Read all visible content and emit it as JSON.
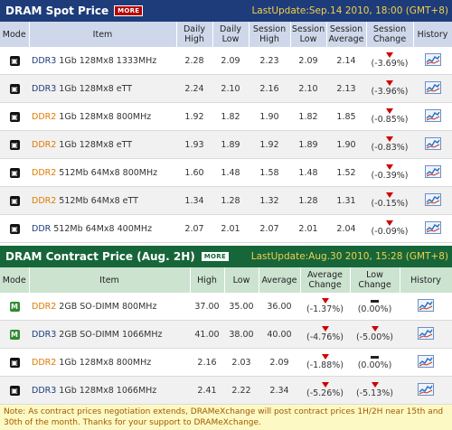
{
  "spot": {
    "title": "DRAM Spot Price",
    "more": "MORE",
    "last_update": "LastUpdate:Sep.14 2010, 18:00 (GMT+8)",
    "headers": [
      "Mode",
      "Item",
      "Daily High",
      "Daily Low",
      "Session High",
      "Session Low",
      "Session Average",
      "Session Change",
      "History"
    ],
    "rows": [
      {
        "mode": "E",
        "gen": "DDR3",
        "item": " 1Gb 128Mx8 1333MHz",
        "daily_high": "2.28",
        "daily_low": "2.09",
        "session_high": "2.23",
        "session_low": "2.09",
        "session_avg": "2.14",
        "change": "(-3.69%)",
        "dir": "down"
      },
      {
        "mode": "E",
        "gen": "DDR3",
        "item": " 1Gb 128Mx8 eTT",
        "daily_high": "2.24",
        "daily_low": "2.10",
        "session_high": "2.16",
        "session_low": "2.10",
        "session_avg": "2.13",
        "change": "(-3.96%)",
        "dir": "down"
      },
      {
        "mode": "E",
        "gen": "DDR2",
        "item": " 1Gb 128Mx8 800MHz",
        "daily_high": "1.92",
        "daily_low": "1.82",
        "session_high": "1.90",
        "session_low": "1.82",
        "session_avg": "1.85",
        "change": "(-0.85%)",
        "dir": "down"
      },
      {
        "mode": "E",
        "gen": "DDR2",
        "item": " 1Gb 128Mx8 eTT",
        "daily_high": "1.93",
        "daily_low": "1.89",
        "session_high": "1.92",
        "session_low": "1.89",
        "session_avg": "1.90",
        "change": "(-0.83%)",
        "dir": "down"
      },
      {
        "mode": "E",
        "gen": "DDR2",
        "item": " 512Mb 64Mx8 800MHz",
        "daily_high": "1.60",
        "daily_low": "1.48",
        "session_high": "1.58",
        "session_low": "1.48",
        "session_avg": "1.52",
        "change": "(-0.39%)",
        "dir": "down"
      },
      {
        "mode": "E",
        "gen": "DDR2",
        "item": " 512Mb 64Mx8 eTT",
        "daily_high": "1.34",
        "daily_low": "1.28",
        "session_high": "1.32",
        "session_low": "1.28",
        "session_avg": "1.31",
        "change": "(-0.15%)",
        "dir": "down"
      },
      {
        "mode": "E",
        "gen": "DDR",
        "item": " 512Mb 64Mx8 400MHz",
        "daily_high": "2.07",
        "daily_low": "2.01",
        "session_high": "2.07",
        "session_low": "2.01",
        "session_avg": "2.04",
        "change": "(-0.09%)",
        "dir": "down"
      }
    ]
  },
  "contract": {
    "title": "DRAM Contract Price (Aug. 2H)",
    "more": "MORE",
    "last_update": "LastUpdate:Aug.30 2010, 15:28 (GMT+8)",
    "headers": [
      "Mode",
      "Item",
      "High",
      "Low",
      "Average",
      "Average Change",
      "Low Change",
      "History"
    ],
    "rows": [
      {
        "mode": "M",
        "gen": "DDR2",
        "item": " 2GB SO-DIMM 800MHz",
        "high": "37.00",
        "low": "35.00",
        "avg": "36.00",
        "avg_change": "(-1.37%)",
        "avg_dir": "down",
        "low_change": "(0.00%)",
        "low_dir": "flat"
      },
      {
        "mode": "M",
        "gen": "DDR3",
        "item": " 2GB SO-DIMM 1066MHz",
        "high": "41.00",
        "low": "38.00",
        "avg": "40.00",
        "avg_change": "(-4.76%)",
        "avg_dir": "down",
        "low_change": "(-5.00%)",
        "low_dir": "down"
      },
      {
        "mode": "E",
        "gen": "DDR2",
        "item": " 1Gb 128Mx8 800MHz",
        "high": "2.16",
        "low": "2.03",
        "avg": "2.09",
        "avg_change": "(-1.88%)",
        "avg_dir": "down",
        "low_change": "(0.00%)",
        "low_dir": "flat"
      },
      {
        "mode": "E",
        "gen": "DDR3",
        "item": " 1Gb 128Mx8 1066MHz",
        "high": "2.41",
        "low": "2.22",
        "avg": "2.34",
        "avg_change": "(-5.26%)",
        "avg_dir": "down",
        "low_change": "(-5.13%)",
        "low_dir": "down"
      }
    ]
  },
  "note": "Note: As contract prices negotiation extends, DRAMeXchange will post contract prices 1H/2H near 15th and 30th of the month. Thanks for your support to DRAMeXchange.",
  "colors": {
    "spot_header": "#1e3c7a",
    "contract_header": "#16663a",
    "update_text": "#f2d04a",
    "down_arrow": "#d00000",
    "ddr3": "#1e3c7a",
    "ddr2": "#e07b00"
  },
  "icons": {
    "mode_e": "e-mode-icon",
    "mode_m": "m-mode-icon",
    "history": "history-chart-icon",
    "down": "down-arrow-icon",
    "flat": "flat-dash-icon"
  }
}
